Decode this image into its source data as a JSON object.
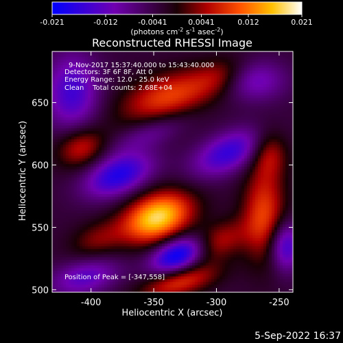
{
  "colorbar": {
    "ticks": [
      "-0.021",
      "-0.012",
      "-0.0041",
      "0.0041",
      "0.012",
      "0.021"
    ],
    "units_prefix": "(photons cm",
    "units_exp1": "-2",
    "units_mid": " s",
    "units_exp2": "-1",
    "units_mid2": " asec",
    "units_exp3": "-2",
    "units_suffix": ")",
    "range": [
      -0.021,
      0.021
    ]
  },
  "image_info": {
    "time": "9-Nov-2017 15:37:40.000 to 15:43:40.000",
    "detectors": "Detectors: 3F 6F 8F, Att 0",
    "energy": "Energy Range: 12.0 - 25.0 keV",
    "clean": "Clean    Total counts: 2.68E+04",
    "peak": "Position of Peak = [-347,558]"
  },
  "footer_date": "5-Sep-2022 16:37",
  "chart_data": {
    "type": "heatmap",
    "title": "Reconstructed RHESSI Image",
    "xlabel": "Heliocentric X (arcsec)",
    "ylabel": "Heliocentric Y (arcsec)",
    "xlim": [
      -431,
      -239
    ],
    "ylim": [
      498,
      691
    ],
    "xticks": [
      -400,
      -350,
      -300,
      -250
    ],
    "xtick_labels": [
      "-400",
      "-350",
      "-300",
      "-250"
    ],
    "yticks": [
      500,
      550,
      600,
      650
    ],
    "ytick_labels": [
      "500",
      "550",
      "600",
      "650"
    ],
    "colormap": "RHESSI red-temperature (blue-purple-red-orange-yellow-white)",
    "peak_position": [
      -347,
      558
    ],
    "sources": [
      {
        "x": -347,
        "y": 558,
        "sx": 20,
        "sy": 13,
        "angle": 22,
        "amp": 0.021
      },
      {
        "x": -338,
        "y": 655,
        "sx": 28,
        "sy": 13,
        "angle": 18,
        "amp": 0.012
      },
      {
        "x": -408,
        "y": 614,
        "sx": 14,
        "sy": 11,
        "angle": 20,
        "amp": 0.01
      },
      {
        "x": -300,
        "y": 538,
        "sx": 18,
        "sy": 10,
        "angle": 25,
        "amp": 0.009
      },
      {
        "x": -330,
        "y": 506,
        "sx": 22,
        "sy": 8,
        "angle": 15,
        "amp": 0.011
      },
      {
        "x": -262,
        "y": 560,
        "sx": 12,
        "sy": 26,
        "angle": 0,
        "amp": 0.012
      },
      {
        "x": -258,
        "y": 610,
        "sx": 10,
        "sy": 14,
        "angle": 0,
        "amp": 0.008
      },
      {
        "x": -295,
        "y": 672,
        "sx": 16,
        "sy": 10,
        "angle": 20,
        "amp": 0.006
      },
      {
        "x": -395,
        "y": 540,
        "sx": 16,
        "sy": 10,
        "angle": 20,
        "amp": 0.006
      },
      {
        "x": -330,
        "y": 528,
        "sx": 16,
        "sy": 9,
        "angle": 22,
        "amp": -0.019
      },
      {
        "x": -378,
        "y": 592,
        "sx": 20,
        "sy": 11,
        "angle": 22,
        "amp": -0.015
      },
      {
        "x": -290,
        "y": 610,
        "sx": 22,
        "sy": 11,
        "angle": 25,
        "amp": -0.013
      },
      {
        "x": -415,
        "y": 658,
        "sx": 15,
        "sy": 22,
        "angle": 0,
        "amp": -0.012
      },
      {
        "x": -245,
        "y": 535,
        "sx": 9,
        "sy": 14,
        "angle": 0,
        "amp": -0.013
      },
      {
        "x": -270,
        "y": 668,
        "sx": 18,
        "sy": 12,
        "angle": 0,
        "amp": -0.009
      },
      {
        "x": -405,
        "y": 510,
        "sx": 20,
        "sy": 10,
        "angle": 15,
        "amp": -0.01
      },
      {
        "x": -352,
        "y": 626,
        "sx": 22,
        "sy": 8,
        "angle": 22,
        "amp": -0.006
      }
    ]
  }
}
